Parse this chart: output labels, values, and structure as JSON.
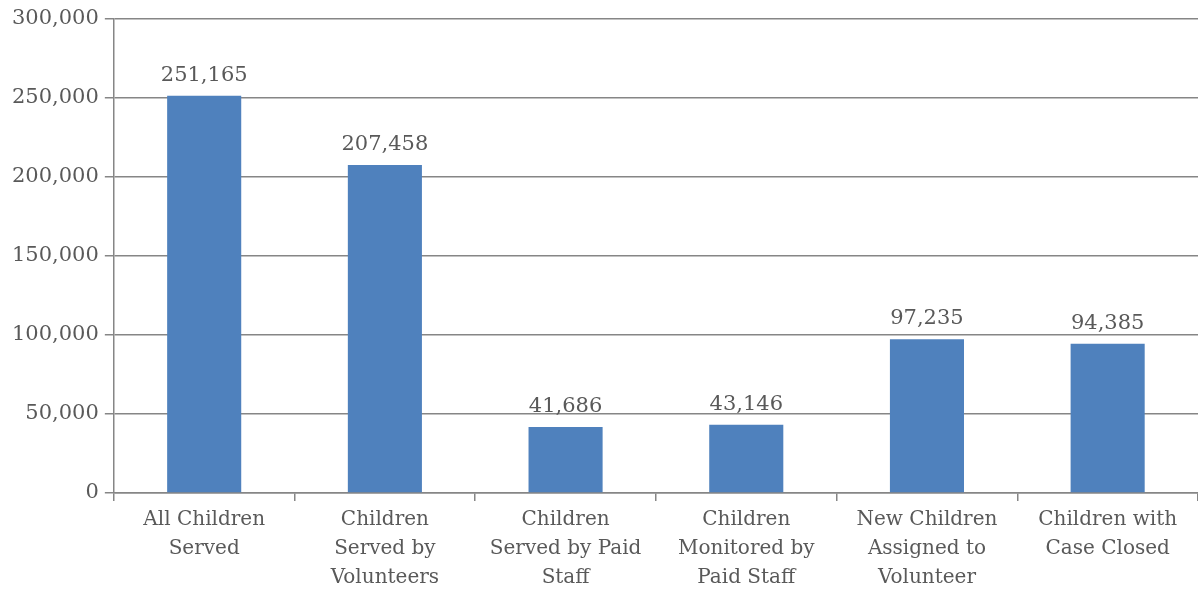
{
  "chart_data": {
    "type": "bar",
    "categories": [
      "All Children Served",
      "Children Served by Volunteers",
      "Children Served by Paid Staff",
      "Children Monitored by Paid Staff",
      "New Children Assigned to Volunteer",
      "Children with Case Closed"
    ],
    "values": [
      251165,
      207458,
      41686,
      43146,
      97235,
      94385
    ],
    "color": "#4f81bd",
    "value_labels": [
      "251,165",
      "207,458",
      "41,686",
      "43,146",
      "97,235",
      "94,385"
    ],
    "ylim": [
      0,
      300000
    ],
    "yticks": [
      0,
      {
        "value": 50000,
        "label": "50,000"
      },
      {
        "value": 100000,
        "label": "100,000"
      },
      {
        "value": 150000,
        "label": "150,000"
      },
      {
        "value": 200000,
        "label": "200,000"
      },
      {
        "value": 250000,
        "label": "250,000"
      },
      {
        "value": 300000,
        "label": "300,000"
      }
    ],
    "grid": "y"
  }
}
